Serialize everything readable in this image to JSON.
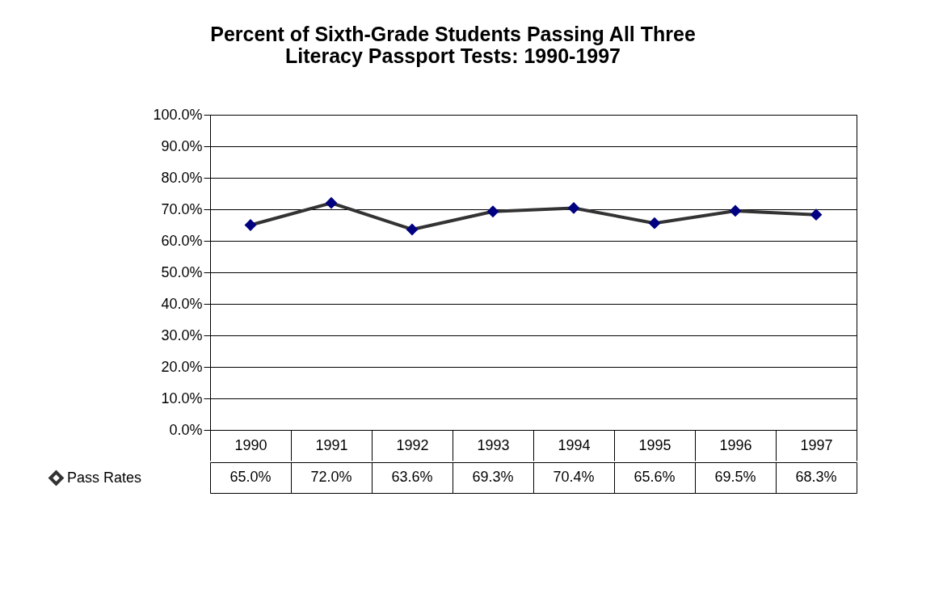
{
  "chart_data": {
    "type": "line",
    "title": "Percent of Sixth-Grade Students Passing All Three\nLiteracy Passport Tests: 1990-1997",
    "categories": [
      "1990",
      "1991",
      "1992",
      "1993",
      "1994",
      "1995",
      "1996",
      "1997"
    ],
    "series": [
      {
        "name": "Pass Rates",
        "color": "#333333",
        "colors": [
          "#000080",
          "#000080",
          "#000080",
          "#000080",
          "#000080",
          "#000080",
          "#000080",
          "#000080"
        ],
        "values": [
          65.0,
          72.0,
          63.6,
          69.3,
          70.4,
          65.6,
          69.5,
          68.3
        ],
        "value_labels": [
          "65.0%",
          "72.0%",
          "63.6%",
          "69.3%",
          "70.4%",
          "65.6%",
          "69.5%",
          "68.3%"
        ]
      }
    ],
    "ylim": [
      0,
      100
    ],
    "yticks": [
      {
        "value": 0,
        "label": "0.0%"
      },
      {
        "value": 10,
        "label": "10.0%"
      },
      {
        "value": 20,
        "label": "20.0%"
      },
      {
        "value": 30,
        "label": "30.0%"
      },
      {
        "value": 40,
        "label": "40.0%"
      },
      {
        "value": 50,
        "label": "50.0%"
      },
      {
        "value": 60,
        "label": "60.0%"
      },
      {
        "value": 70,
        "label": "70.0%"
      },
      {
        "value": 80,
        "label": "80.0%"
      },
      {
        "value": 90,
        "label": "90.0%"
      },
      {
        "value": 100,
        "label": "100.0%"
      }
    ],
    "grid": "y",
    "legend": "bottom left",
    "marker": "diamond",
    "line_style": "solid"
  }
}
